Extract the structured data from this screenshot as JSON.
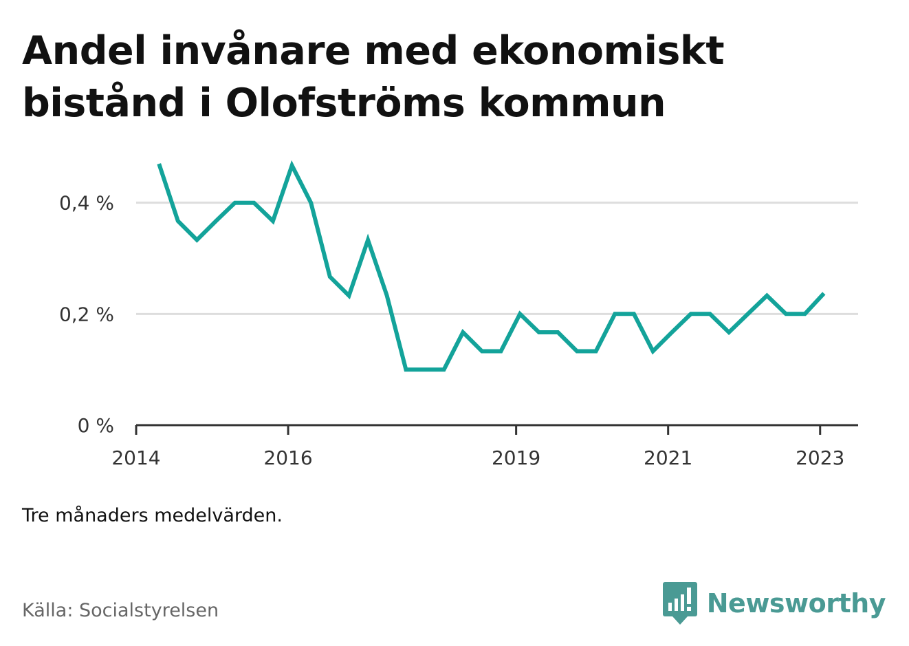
{
  "title": "Andel invånare med ekonomiskt bistånd i Olofströms kommun",
  "note": "Tre månaders medelvärden.",
  "source": "Källa: Socialstyrelsen",
  "brand": {
    "name": "Newsworthy",
    "icon": "newsworthy-logo-icon",
    "color": "#4a9a94"
  },
  "colors": {
    "line": "#13a39a",
    "grid": "#dddddd",
    "axis": "#333333",
    "tick_text": "#333333"
  },
  "chart_data": {
    "type": "line",
    "title": "Andel invånare med ekonomiskt bistånd i Olofströms kommun",
    "xlabel": "",
    "ylabel": "",
    "xlim": [
      2014,
      2023.5
    ],
    "ylim": [
      0,
      0.48
    ],
    "x_ticks": [
      {
        "value": 2014,
        "label": "2014"
      },
      {
        "value": 2016,
        "label": "2016"
      },
      {
        "value": 2019,
        "label": "2019"
      },
      {
        "value": 2021,
        "label": "2021"
      },
      {
        "value": 2023,
        "label": "2023"
      }
    ],
    "y_ticks": [
      {
        "value": 0,
        "label": "0 %"
      },
      {
        "value": 0.2,
        "label": "0,2 %"
      },
      {
        "value": 0.4,
        "label": "0,4 %"
      }
    ],
    "grid": true,
    "legend": "none",
    "series": [
      {
        "x": [
          2014.3,
          2014.55,
          2014.8,
          2015.05,
          2015.3,
          2015.55,
          2015.8,
          2016.05,
          2016.3,
          2016.55,
          2016.8,
          2017.05,
          2017.3,
          2017.55,
          2017.8,
          2018.05,
          2018.3,
          2018.55,
          2018.8,
          2019.05,
          2019.3,
          2019.55,
          2019.8,
          2020.05,
          2020.3,
          2020.55,
          2020.8,
          2021.05,
          2021.3,
          2021.55,
          2021.8,
          2022.05,
          2022.3,
          2022.55,
          2022.8,
          2023.05
        ],
        "values": [
          0.47,
          0.367,
          0.333,
          0.367,
          0.4,
          0.4,
          0.367,
          0.467,
          0.4,
          0.267,
          0.233,
          0.333,
          0.233,
          0.1,
          0.1,
          0.1,
          0.167,
          0.133,
          0.133,
          0.2,
          0.167,
          0.167,
          0.133,
          0.133,
          0.2,
          0.2,
          0.133,
          0.167,
          0.2,
          0.2,
          0.167,
          0.2,
          0.233,
          0.2,
          0.2,
          0.237
        ]
      }
    ]
  }
}
